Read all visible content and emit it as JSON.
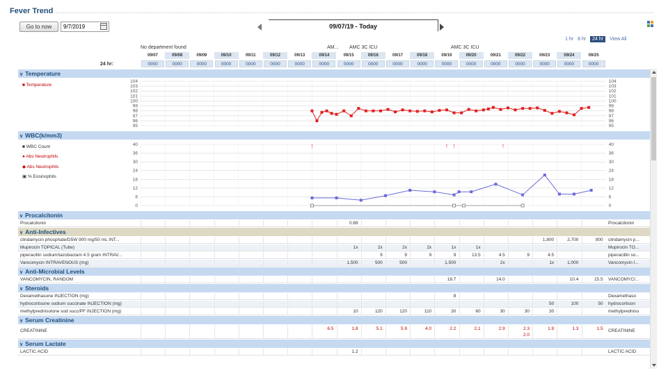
{
  "header": {
    "title": "Fever Trend",
    "goto_label": "Go to now",
    "date_value": "9/7/2019",
    "range_label": "09/07/19 - Today",
    "time_links": [
      "1 hr",
      "8 hr",
      "24 hr",
      "View All"
    ],
    "selected_time_link": "24 hr",
    "period_label": "24 hr:",
    "location_labels": [
      "No department found",
      "AM...",
      "AMC 3C ICU",
      "AMC 3C ICU"
    ]
  },
  "days": [
    "09/07",
    "09/08",
    "09/09",
    "09/10",
    "09/11",
    "09/12",
    "09/13",
    "09/14",
    "09/15",
    "09/16",
    "09/17",
    "09/18",
    "09/19",
    "09/20",
    "09/21",
    "09/22",
    "09/23",
    "09/24",
    "09/25"
  ],
  "time_label": "0000",
  "colors": {
    "section_blue": "#c5d9f1",
    "section_tan": "#ddd9c4",
    "temp_series": "#e02020",
    "wbc_series": "#6a6ad8",
    "abnormal": "#c00000"
  },
  "sections": {
    "temperature": "Temperature",
    "wbc": "WBC(k/mm3)",
    "procalcitonin": "Procalcitonin",
    "anti_infectives": "Anti-Infectives",
    "anti_microbial": "Anti-Microbial Levels",
    "steroids": "Steroids",
    "serum_creatinine": "Serum Creatinine",
    "serum_lactate": "Serum Lactate"
  },
  "chart_data": [
    {
      "type": "line",
      "title": "Temperature",
      "series": [
        {
          "name": "Temperature",
          "x_day_index": [
            7,
            7.2,
            7.4,
            7.6,
            7.8,
            8.0,
            8.3,
            8.6,
            8.9,
            9.2,
            9.5,
            9.8,
            10.1,
            10.4,
            10.7,
            11.0,
            11.3,
            11.6,
            11.9,
            12.2,
            12.5,
            12.8,
            13.1,
            13.4,
            13.7,
            14.0,
            14.2,
            14.4,
            14.7,
            15.0,
            15.3,
            15.6,
            15.9,
            16.2,
            16.5,
            16.8,
            17.1,
            17.4,
            17.7,
            18.0,
            18.3
          ],
          "values": [
            98,
            96,
            97.7,
            98,
            97.5,
            97.3,
            98,
            97,
            98.5,
            98,
            98,
            98,
            98.3,
            97.8,
            98.2,
            98,
            97.9,
            98,
            97.8,
            98.1,
            98.2,
            97.6,
            97.6,
            98.3,
            98,
            98.2,
            98.4,
            98.7,
            98.3,
            98.6,
            98.2,
            98.5,
            98.5,
            98.6,
            98.1,
            97.5,
            97.9,
            97.6,
            97.2,
            98.5,
            98.7
          ]
        }
      ],
      "y_ticks_left": [
        "104",
        "103",
        "102",
        "101",
        "100",
        "99",
        "98",
        "97",
        "96",
        "95"
      ],
      "y_ticks_right": [
        "104",
        "103",
        "102",
        "101",
        "100",
        "99",
        "98",
        "97",
        "96",
        "95"
      ],
      "ylim": [
        95,
        104
      ],
      "grid": true
    },
    {
      "type": "line",
      "title": "WBC(k/mm3)",
      "series": [
        {
          "name": "WBC Count",
          "x_day_index": [
            7,
            8,
            9,
            10,
            11,
            12,
            12.8,
            13,
            13.5,
            14.5,
            15.6,
            16.5,
            17.1,
            17.7,
            18.4
          ],
          "values": [
            5,
            5,
            3.5,
            6.5,
            10,
            9,
            7,
            9,
            9,
            14,
            7,
            20,
            7.5,
            7.5,
            10
          ]
        },
        {
          "name": "Abs Neutrophils",
          "x_day_index": [
            7,
            12.8,
            13.2,
            15.6
          ],
          "values": [
            0,
            0,
            0,
            0
          ]
        }
      ],
      "legend": [
        "WBC Count",
        "Abs Neutrophils",
        "Abs Neutrophils",
        "% Eosinophils"
      ],
      "y_ticks_left": [
        "40",
        "36",
        "30",
        "24",
        "18",
        "12",
        "6",
        "0"
      ],
      "y_ticks_right": [
        "40",
        "36",
        "30",
        "24",
        "18",
        "12",
        "6",
        "0"
      ],
      "ylim": [
        0,
        40
      ],
      "grid": true
    }
  ],
  "rows": {
    "procalcitonin": {
      "label": "Procalcitonin",
      "right": "Procalcitonin",
      "values": [
        {
          "d": 8,
          "v": "0.69"
        }
      ]
    },
    "anti_infectives": [
      {
        "label": "clindamycin phosphate/D5W 900 mg/50 mL INT...",
        "right": "clindamycin p...",
        "values": [
          {
            "d": 16,
            "v": "1,800"
          },
          {
            "d": 17,
            "v": "2,700"
          },
          {
            "d": 18,
            "v": "900"
          }
        ]
      },
      {
        "label": "Mupirocin TOPICAL (Tube)",
        "right": "Mupirocin TO...",
        "values": [
          {
            "d": 8,
            "v": "1x"
          },
          {
            "d": 9,
            "v": "2x"
          },
          {
            "d": 10,
            "v": "2x"
          },
          {
            "d": 11,
            "v": "2x"
          },
          {
            "d": 12,
            "v": "1x"
          },
          {
            "d": 13,
            "v": "1x"
          }
        ]
      },
      {
        "label": "piperacillin sodium/tazobactam 4.5 gram INTRAV...",
        "right": "piperacillin so...",
        "values": [
          {
            "d": 9,
            "v": "9"
          },
          {
            "d": 10,
            "v": "9"
          },
          {
            "d": 11,
            "v": "9"
          },
          {
            "d": 12,
            "v": "9"
          },
          {
            "d": 13,
            "v": "13.5"
          },
          {
            "d": 14,
            "v": "4.5"
          },
          {
            "d": 15,
            "v": "9"
          },
          {
            "d": 16,
            "v": "4.5"
          }
        ]
      },
      {
        "label": "Vancomycin INTRAVENOUS (mg)",
        "right": "Vancomycin I...",
        "values": [
          {
            "d": 8,
            "v": "1,500"
          },
          {
            "d": 9,
            "v": "500"
          },
          {
            "d": 10,
            "v": "500"
          },
          {
            "d": 12,
            "v": "1,500"
          },
          {
            "d": 14,
            "v": "2x"
          },
          {
            "d": 16,
            "v": "1x"
          },
          {
            "d": 17,
            "v": "1,000"
          }
        ]
      }
    ],
    "anti_microbial": [
      {
        "label": "VANCOMYCIN, RANDOM",
        "right": "VANCOMYCI...",
        "values": [
          {
            "d": 12,
            "v": "18.7"
          },
          {
            "d": 14,
            "v": "14.0"
          },
          {
            "d": 17,
            "v": "10.4"
          },
          {
            "d": 18,
            "v": "15.5"
          }
        ]
      }
    ],
    "steroids": [
      {
        "label": "Dexamethasone INJECTION (mg)",
        "right": "Dexamethaso",
        "values": [
          {
            "d": 12,
            "v": "8"
          }
        ]
      },
      {
        "label": "hydrocortisone sodium succinate INJECTION (mg)",
        "right": "hydrocortison",
        "values": [
          {
            "d": 16,
            "v": "50"
          },
          {
            "d": 17,
            "v": "100"
          },
          {
            "d": 18,
            "v": "50"
          }
        ]
      },
      {
        "label": "methylprednisolone sod succ/PF INJECTION (mg)",
        "right": "methylpredniso",
        "values": [
          {
            "d": 8,
            "v": "10"
          },
          {
            "d": 9,
            "v": "120"
          },
          {
            "d": 10,
            "v": "120"
          },
          {
            "d": 11,
            "v": "110"
          },
          {
            "d": 12,
            "v": "30"
          },
          {
            "d": 13,
            "v": "60"
          },
          {
            "d": 14,
            "v": "30"
          },
          {
            "d": 15,
            "v": "30"
          },
          {
            "d": 16,
            "v": "30"
          }
        ]
      }
    ],
    "serum_creatinine": [
      {
        "label": "CREATININE",
        "right": "CREATININE",
        "values": [
          {
            "d": 7,
            "v": "6.5"
          },
          {
            "d": 8,
            "v": "1.8"
          },
          {
            "d": 9,
            "v": "5.1"
          },
          {
            "d": 10,
            "v": "5.9"
          },
          {
            "d": 11,
            "v": "4.0"
          },
          {
            "d": 12,
            "v": "2.2"
          },
          {
            "d": 13,
            "v": "2.1"
          },
          {
            "d": 14,
            "v": "2.9"
          },
          {
            "d": 15,
            "v": "2.3"
          },
          {
            "d": 16,
            "v": "1.9"
          },
          {
            "d": 17,
            "v": "1.3"
          },
          {
            "d": 18,
            "v": "1.5"
          }
        ],
        "extra": [
          {
            "d": 15,
            "v": "2.0"
          }
        ]
      }
    ],
    "serum_lactate": [
      {
        "label": "LACTIC ACID",
        "right": "LACTIC ACID",
        "values": [
          {
            "d": 8,
            "v": "1.2"
          }
        ]
      }
    ]
  }
}
